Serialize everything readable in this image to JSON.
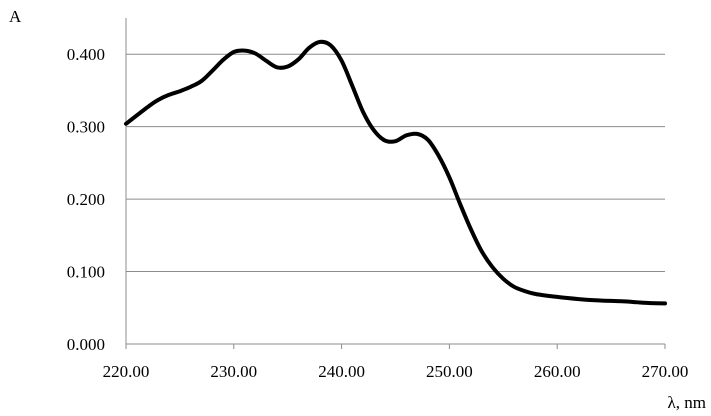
{
  "chart_data": {
    "type": "line",
    "title": "",
    "xlabel": "λ, nm",
    "ylabel": "A",
    "xlim": [
      220,
      270
    ],
    "ylim": [
      0,
      0.4
    ],
    "x_ticks": [
      "220.00",
      "230.00",
      "240.00",
      "250.00",
      "260.00",
      "270.00"
    ],
    "x_tick_values": [
      220,
      230,
      240,
      250,
      260,
      270
    ],
    "y_ticks": [
      "0.000",
      "0.100",
      "0.200",
      "0.300",
      "0.400"
    ],
    "y_tick_values": [
      0,
      0.1,
      0.2,
      0.3,
      0.4
    ],
    "grid": "horizontal",
    "legend": "none",
    "series": [
      {
        "color": "#000000",
        "x": [
          220.0,
          222.0,
          223.0,
          224.0,
          225.0,
          226.0,
          227.0,
          228.0,
          229.0,
          230.0,
          231.0,
          232.0,
          233.0,
          234.0,
          235.0,
          236.0,
          237.0,
          238.0,
          239.0,
          240.0,
          241.0,
          242.0,
          243.0,
          244.0,
          245.0,
          246.0,
          247.0,
          248.0,
          249.0,
          250.0,
          251.0,
          252.0,
          253.0,
          254.0,
          255.0,
          256.0,
          257.0,
          258.0,
          260.0,
          262.0,
          264.0,
          266.0,
          268.0,
          270.0
        ],
        "y": [
          0.304,
          0.327,
          0.337,
          0.344,
          0.349,
          0.355,
          0.363,
          0.377,
          0.392,
          0.403,
          0.405,
          0.401,
          0.391,
          0.382,
          0.383,
          0.393,
          0.409,
          0.417,
          0.412,
          0.391,
          0.356,
          0.32,
          0.295,
          0.281,
          0.28,
          0.288,
          0.29,
          0.282,
          0.26,
          0.23,
          0.193,
          0.158,
          0.128,
          0.106,
          0.09,
          0.079,
          0.073,
          0.069,
          0.065,
          0.062,
          0.06,
          0.059,
          0.057,
          0.056
        ]
      }
    ]
  }
}
